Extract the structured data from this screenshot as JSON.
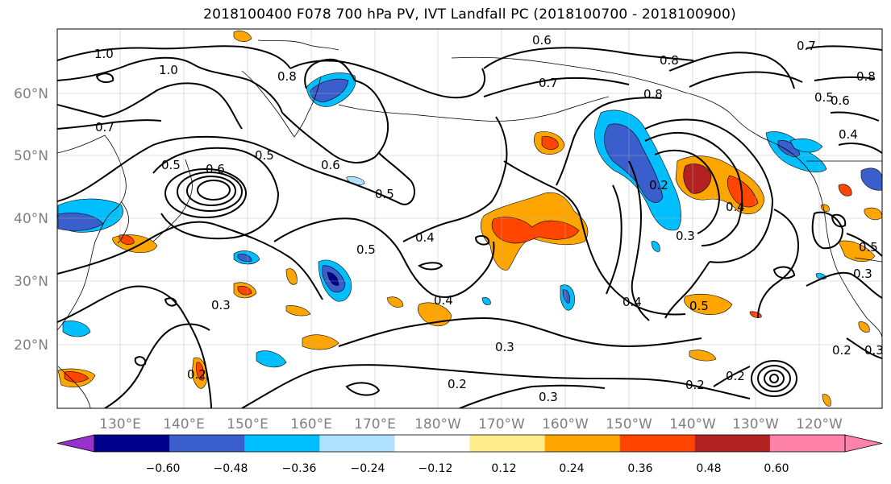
{
  "title": "2018100400 F078 700 hPa PV, IVT Landfall PC (2018100700 - 2018100900)",
  "lat_labels": [
    "60°N",
    "50°N",
    "40°N",
    "30°N",
    "20°N"
  ],
  "lon_labels": [
    "130°E",
    "140°E",
    "150°E",
    "160°E",
    "170°E",
    "180°W",
    "170°W",
    "160°W",
    "150°W",
    "140°W",
    "130°W",
    "120°W"
  ],
  "contour_labels": [
    "1.0",
    "1.0",
    "0.7",
    "0.8",
    "0.5",
    "0.6",
    "0.5",
    "0.5",
    "0.4",
    "0.4",
    "0.3",
    "0.3",
    "0.2",
    "0.3",
    "0.8",
    "0.7",
    "0.6",
    "0.8",
    "0.2",
    "0.3",
    "0.4",
    "0.4",
    "0.5",
    "0.2",
    "0.2",
    "0.4",
    "0.5",
    "0.5",
    "0.2",
    "0.3",
    "0.3",
    "0.2",
    "0.5",
    "0.6",
    "0.7",
    "0.6",
    "0.8"
  ],
  "colorbar": {
    "ticks": [
      "−0.60",
      "−0.48",
      "−0.36",
      "−0.24",
      "−0.12",
      "0.12",
      "0.24",
      "0.36",
      "0.48",
      "0.60"
    ],
    "colors": [
      "#9932cc",
      "#00008b",
      "#3a5fcd",
      "#00bfff",
      "#b0e2ff",
      "#ffffff",
      "#ffec8b",
      "#ffa500",
      "#ff4500",
      "#b22222",
      "#ff82ab",
      "#ff82ab"
    ]
  }
}
